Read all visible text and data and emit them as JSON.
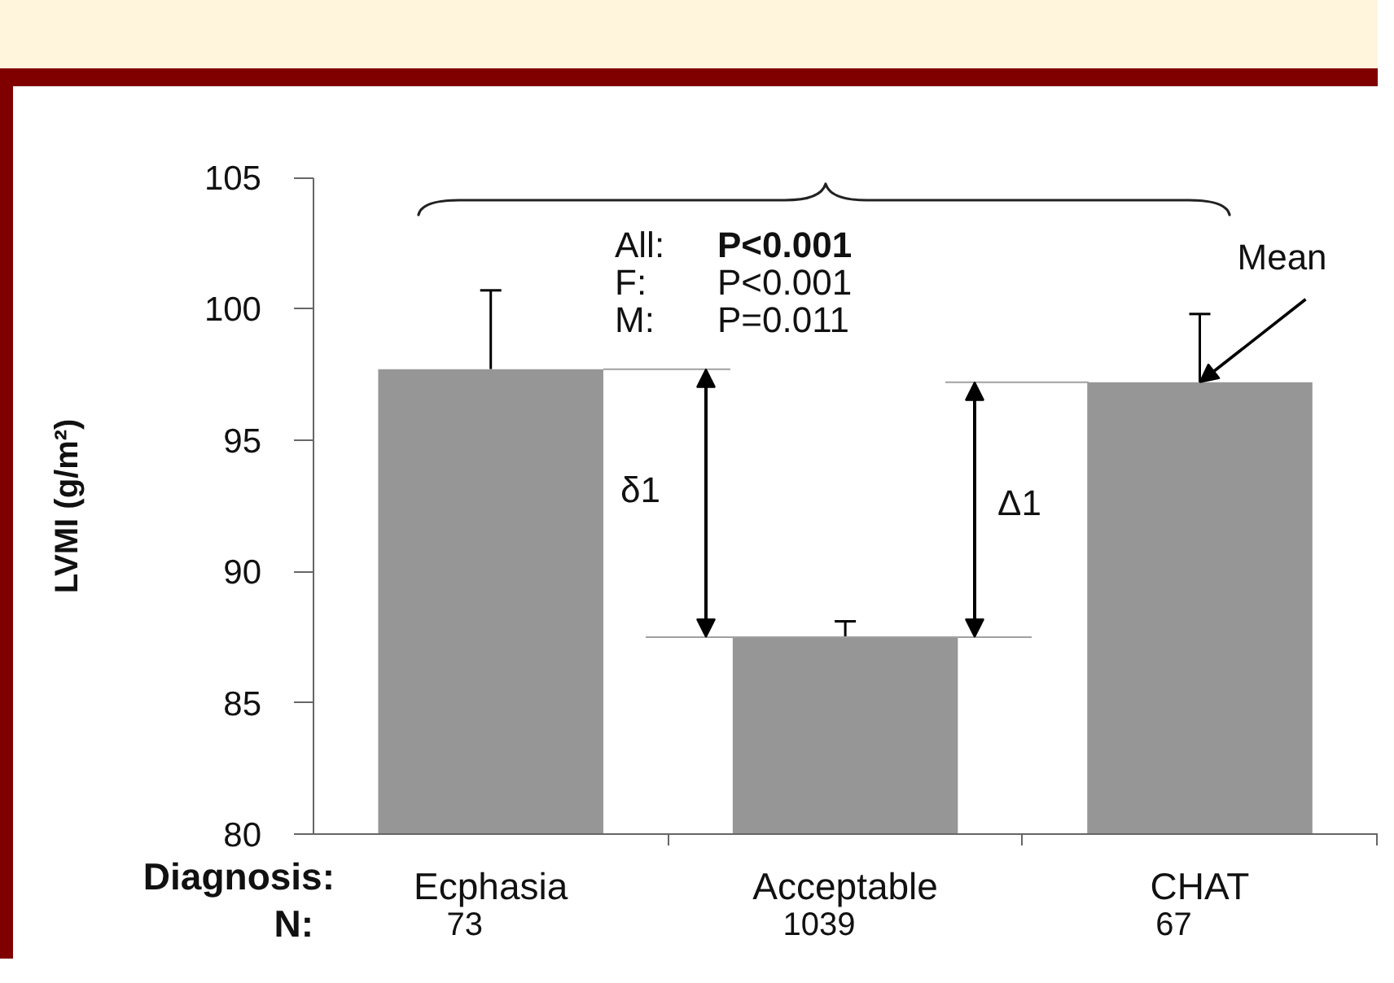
{
  "chart_data": {
    "type": "bar",
    "xlabel": "Diagnosis:",
    "ylabel": "LVMI (g/m²)",
    "categories": [
      "Ecphasia",
      "Acceptable",
      "CHAT"
    ],
    "values": [
      97.7,
      87.5,
      97.2
    ],
    "errors": [
      [
        97.7,
        100.7
      ],
      [
        87.5,
        88.1
      ],
      [
        97.2,
        99.8
      ]
    ],
    "color": "#969696",
    "ylim": [
      80,
      105
    ],
    "yticks": [
      80,
      85,
      90,
      95,
      100,
      105
    ],
    "ref_lines": [
      {
        "axis": "y",
        "value": 97.7,
        "color": "#a0a0a0"
      },
      {
        "axis": "y",
        "value": 87.5,
        "color": "#a0a0a0"
      },
      {
        "axis": "y",
        "value": 97.2,
        "color": "#a0a0a0"
      }
    ],
    "annotations": [
      "All: P<0.001",
      "F: P<0.001",
      "M: P=0.011",
      "δ1",
      "Δ1",
      "N:",
      "73",
      "1039",
      "67",
      {
        "text": "Mean",
        "x": "CHAT",
        "y": 97.2
      }
    ]
  }
}
